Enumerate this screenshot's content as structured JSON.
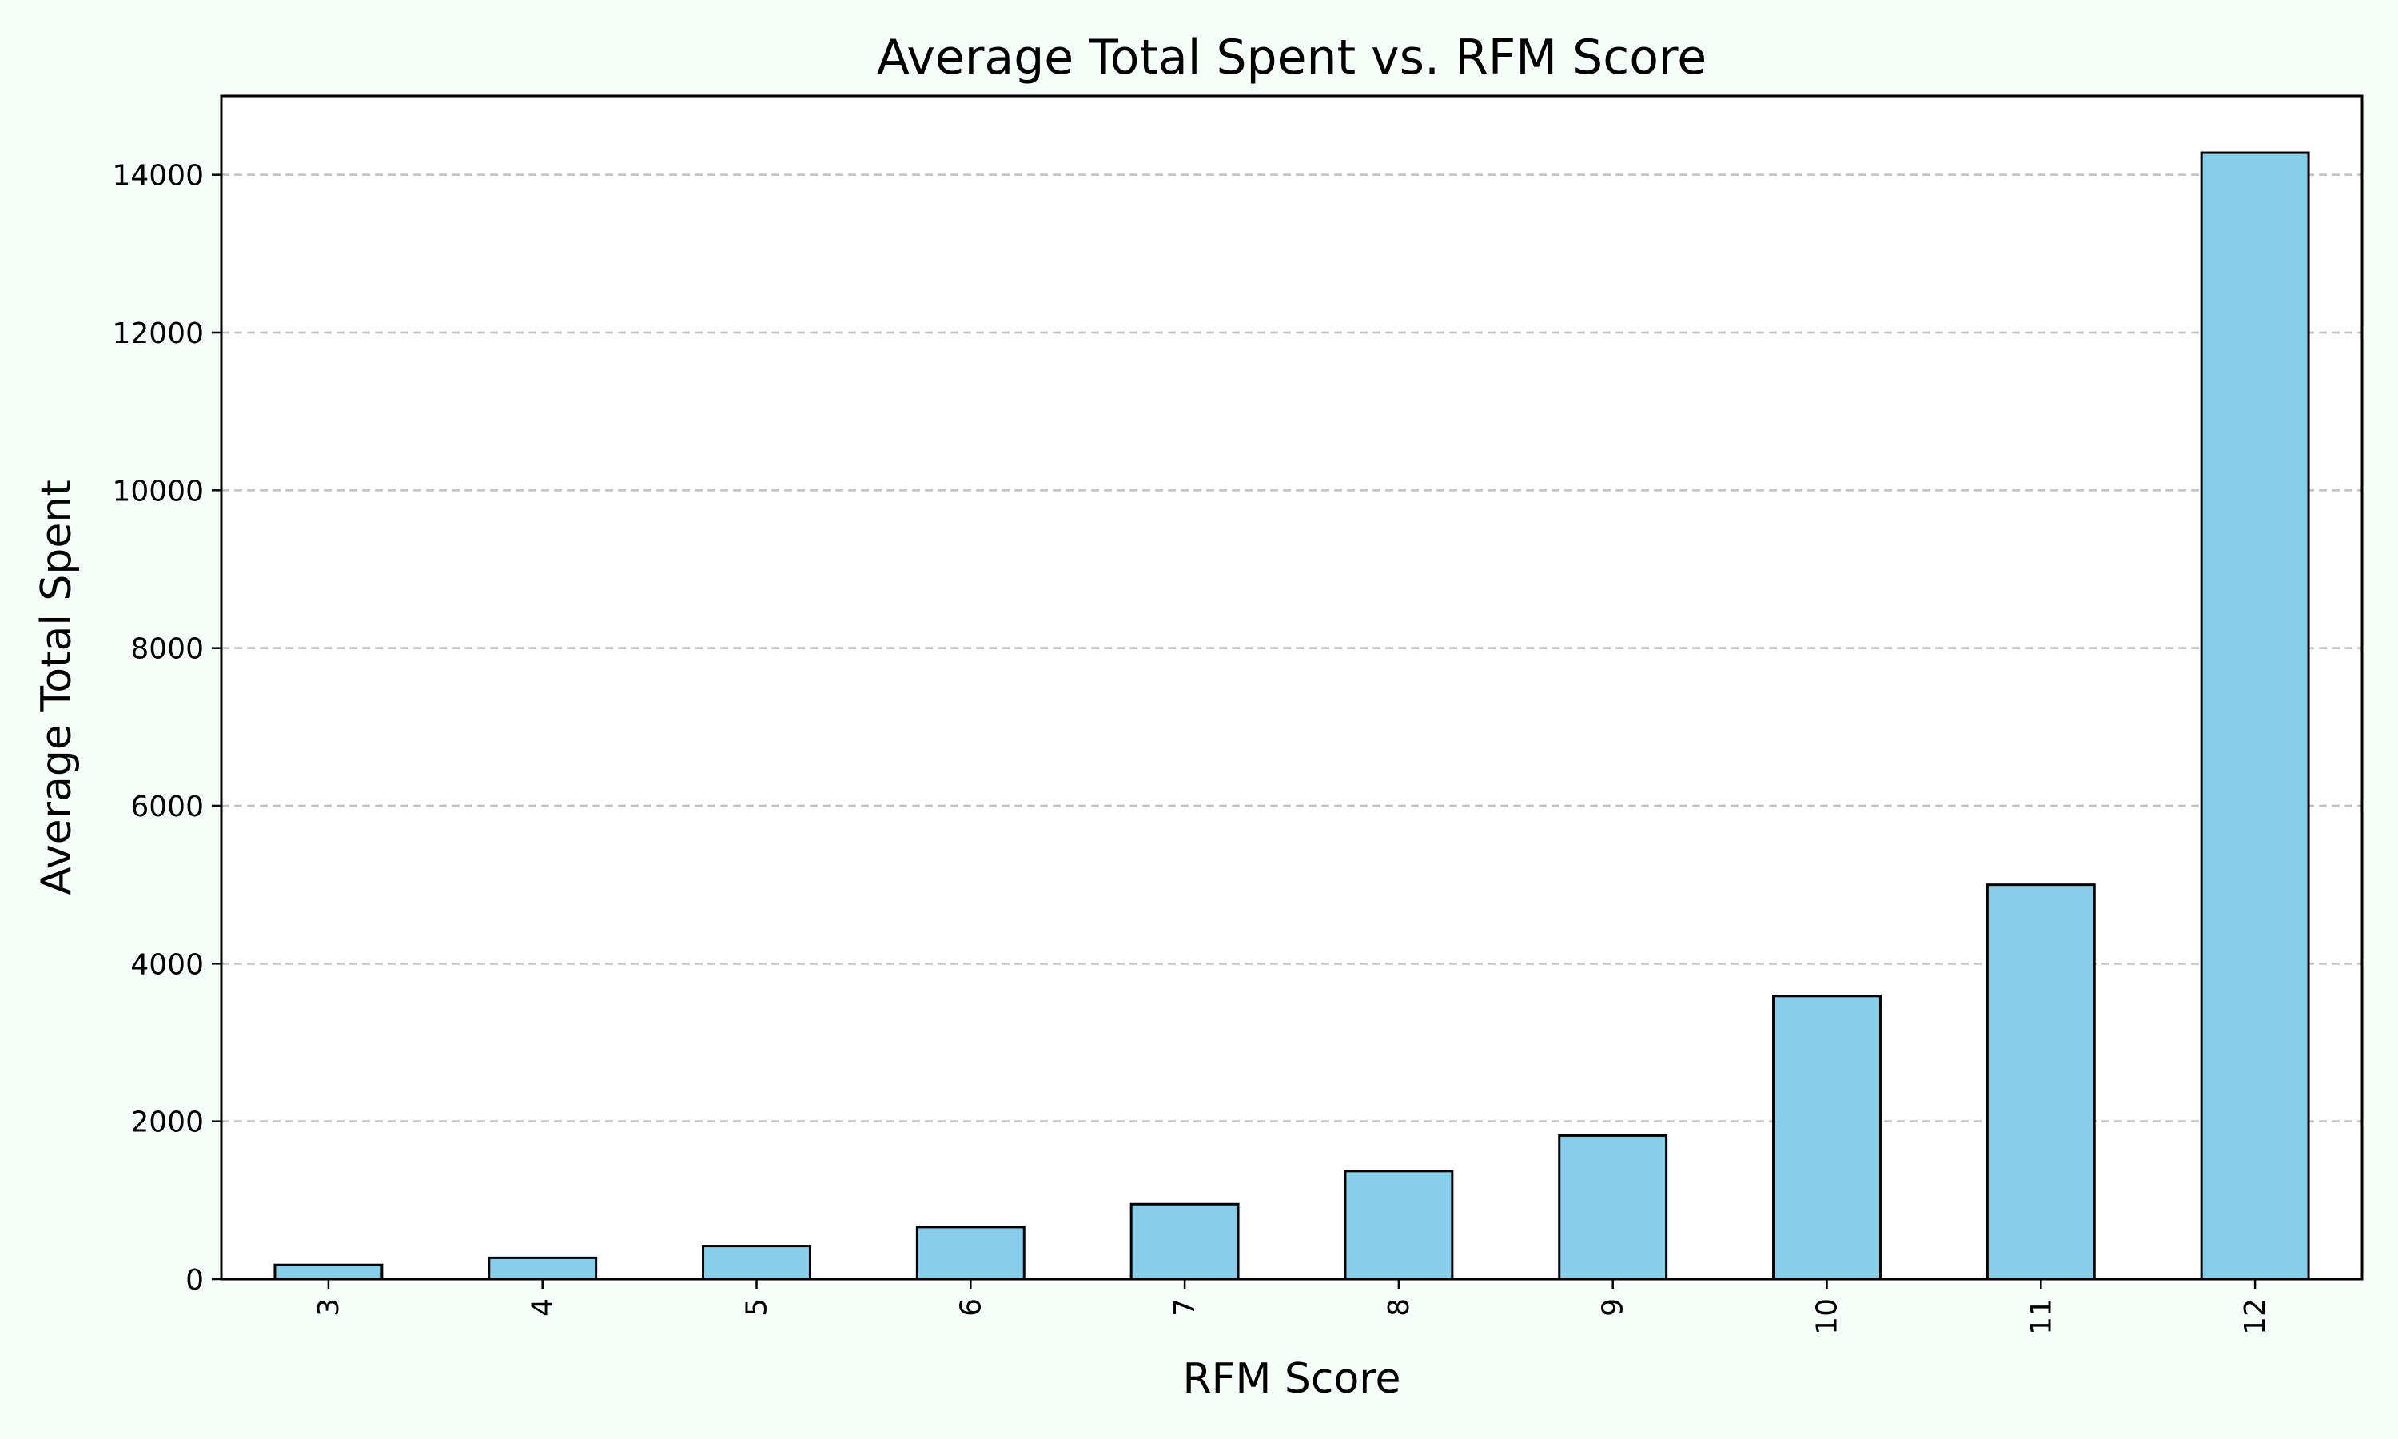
{
  "chart_data": {
    "type": "bar",
    "title": "Average Total Spent vs. RFM Score",
    "xlabel": "RFM Score",
    "ylabel": "Average Total Spent",
    "categories": [
      "3",
      "4",
      "5",
      "6",
      "7",
      "8",
      "9",
      "10",
      "11",
      "12"
    ],
    "values": [
      180,
      270,
      420,
      660,
      950,
      1370,
      1820,
      3590,
      5000,
      14280
    ],
    "ylim": [
      0,
      15000
    ],
    "yticks": [
      0,
      2000,
      4000,
      6000,
      8000,
      10000,
      12000,
      14000
    ],
    "grid": "y-dashed",
    "legend": "none",
    "colors": {
      "bar_fill": "#87ceeb",
      "bar_edge": "#000000",
      "grid": "#c0c0c0",
      "background": "#f5fff8",
      "plot_background": "#ffffff"
    }
  }
}
